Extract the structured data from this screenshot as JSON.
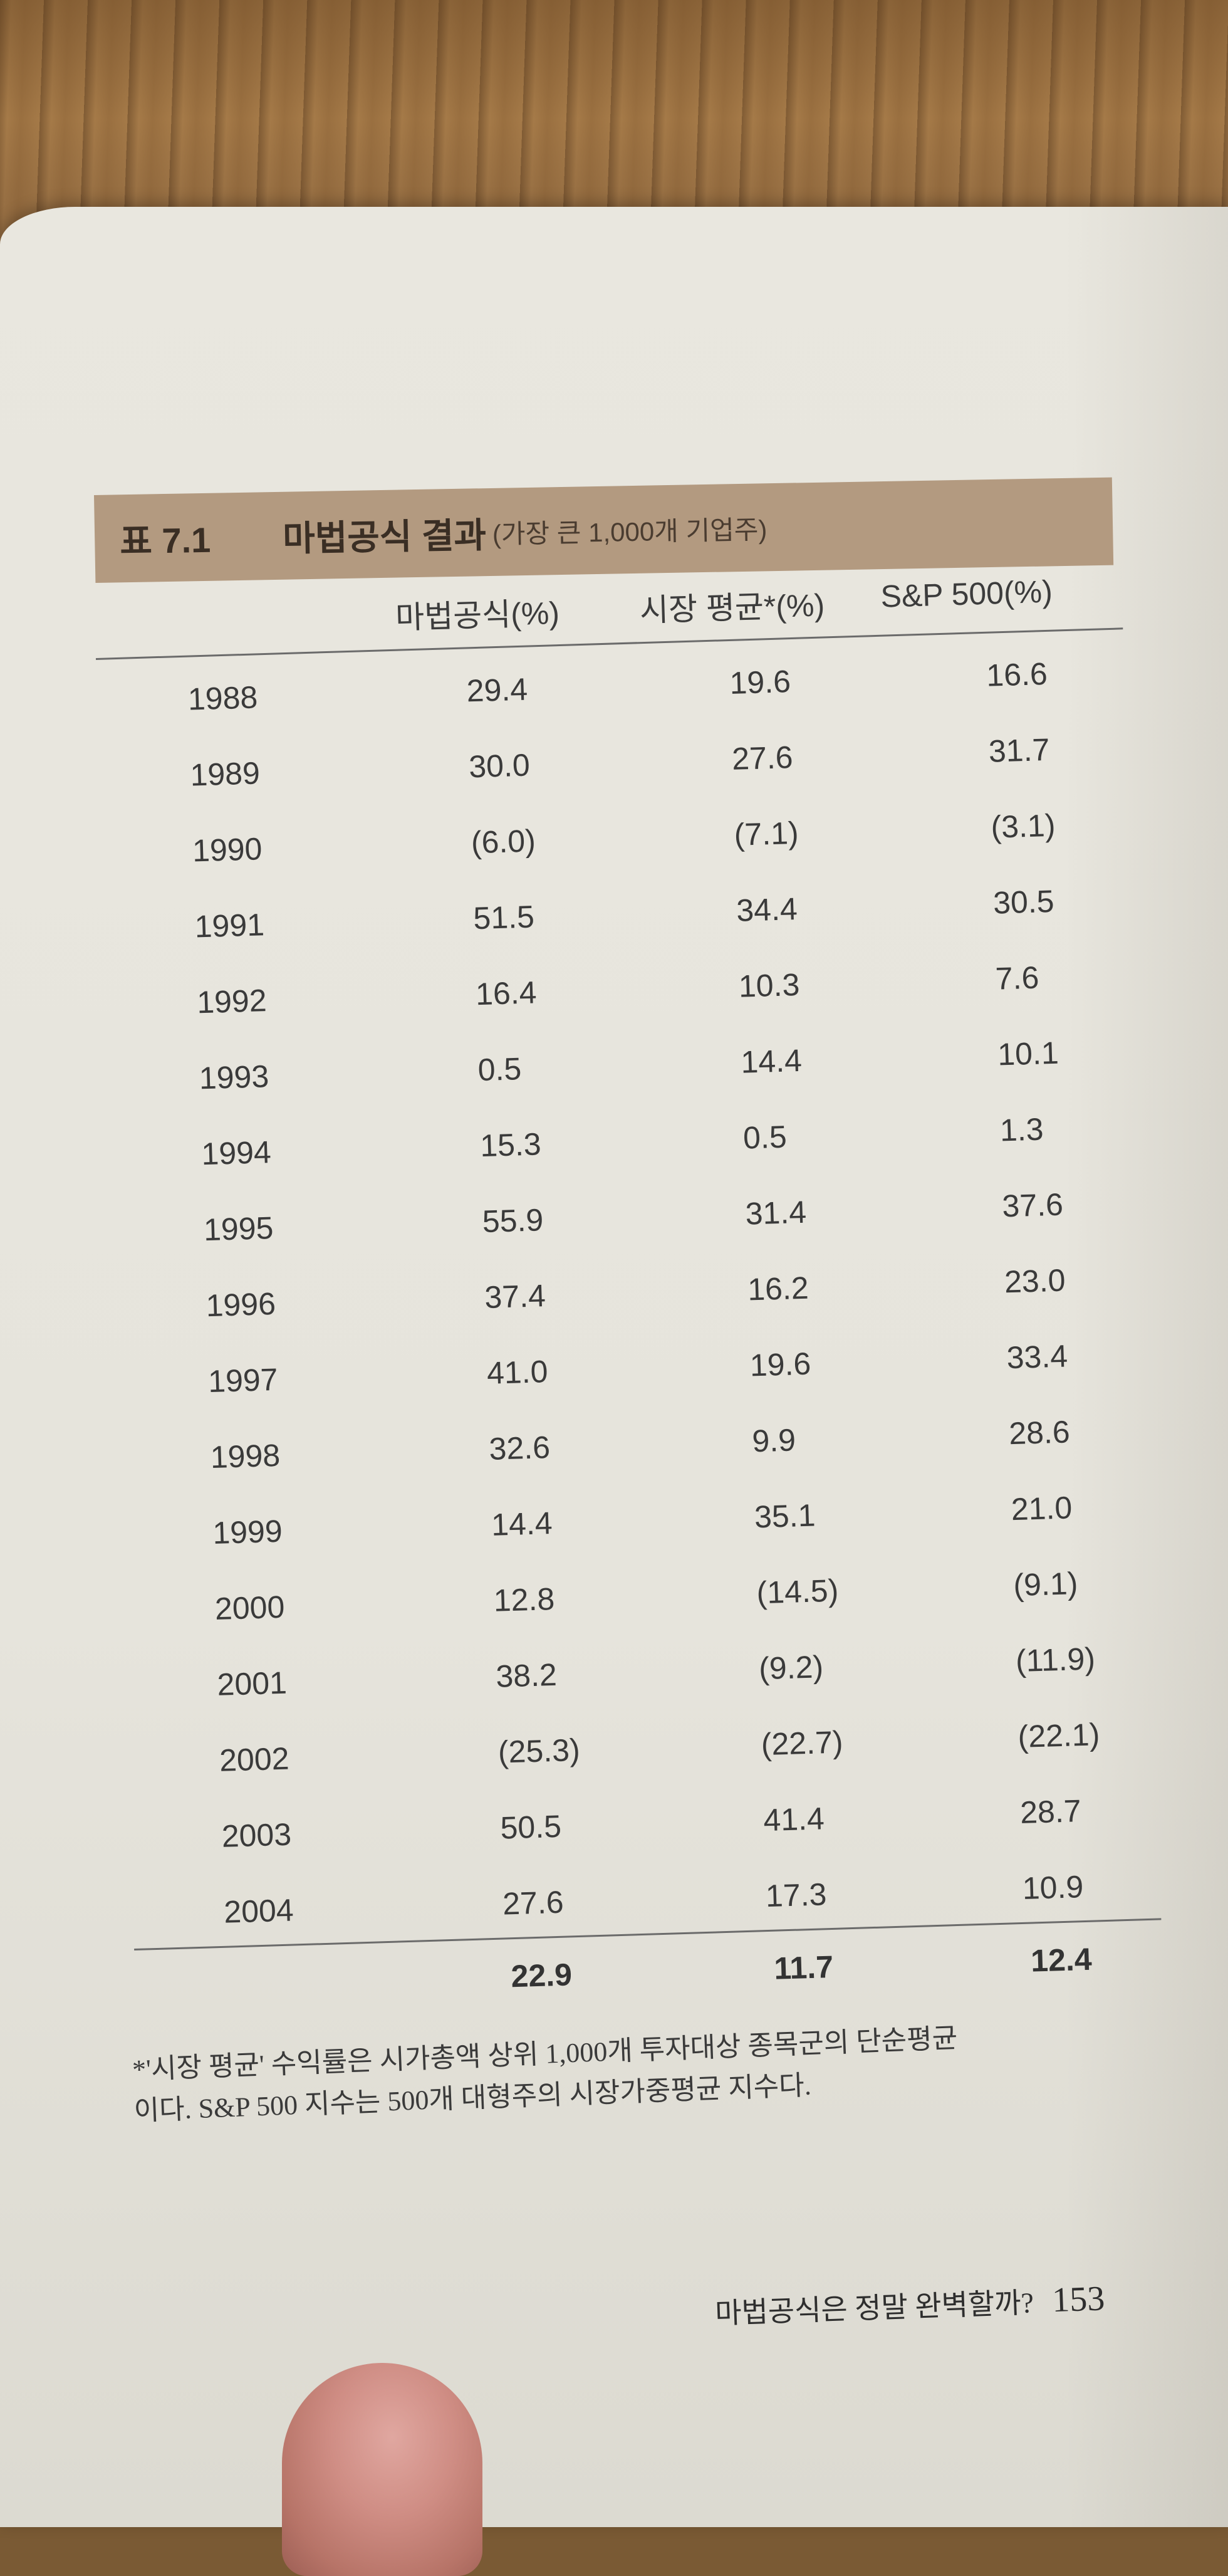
{
  "table": {
    "label": "표 7.1",
    "title": "마법공식 결과",
    "subtitle": "(가장 큰 1,000개 기업주)",
    "headers": [
      "",
      "마법공식(%)",
      "시장 평균*(%)",
      "S&P 500(%)"
    ],
    "rows": [
      {
        "year": "1988",
        "magic": "29.4",
        "market": "19.6",
        "sp500": "16.6"
      },
      {
        "year": "1989",
        "magic": "30.0",
        "market": "27.6",
        "sp500": "31.7"
      },
      {
        "year": "1990",
        "magic": "(6.0)",
        "market": "(7.1)",
        "sp500": "(3.1)"
      },
      {
        "year": "1991",
        "magic": "51.5",
        "market": "34.4",
        "sp500": "30.5"
      },
      {
        "year": "1992",
        "magic": "16.4",
        "market": "10.3",
        "sp500": "7.6"
      },
      {
        "year": "1993",
        "magic": "0.5",
        "market": "14.4",
        "sp500": "10.1"
      },
      {
        "year": "1994",
        "magic": "15.3",
        "market": "0.5",
        "sp500": "1.3"
      },
      {
        "year": "1995",
        "magic": "55.9",
        "market": "31.4",
        "sp500": "37.6"
      },
      {
        "year": "1996",
        "magic": "37.4",
        "market": "16.2",
        "sp500": "23.0"
      },
      {
        "year": "1997",
        "magic": "41.0",
        "market": "19.6",
        "sp500": "33.4"
      },
      {
        "year": "1998",
        "magic": "32.6",
        "market": "9.9",
        "sp500": "28.6"
      },
      {
        "year": "1999",
        "magic": "14.4",
        "market": "35.1",
        "sp500": "21.0"
      },
      {
        "year": "2000",
        "magic": "12.8",
        "market": "(14.5)",
        "sp500": "(9.1)"
      },
      {
        "year": "2001",
        "magic": "38.2",
        "market": "(9.2)",
        "sp500": "(11.9)"
      },
      {
        "year": "2002",
        "magic": "(25.3)",
        "market": "(22.7)",
        "sp500": "(22.1)"
      },
      {
        "year": "2003",
        "magic": "50.5",
        "market": "41.4",
        "sp500": "28.7"
      },
      {
        "year": "2004",
        "magic": "27.6",
        "market": "17.3",
        "sp500": "10.9"
      }
    ],
    "average": {
      "magic": "22.9",
      "market": "11.7",
      "sp500": "12.4"
    }
  },
  "footnote": {
    "line1": "*'시장 평균' 수익률은 시가총액 상위 1,000개 투자대상 종목군의 단순평균",
    "line2": "이다. S&P 500 지수는 500개 대형주의 시장가중평균 지수다."
  },
  "page_footer": {
    "chapter": "마법공식은 정말 완벽할까?",
    "page_number": "153"
  },
  "colors": {
    "title_bar": "#b39a80",
    "paper": "#e8e6de",
    "text": "#3a3a3a"
  }
}
